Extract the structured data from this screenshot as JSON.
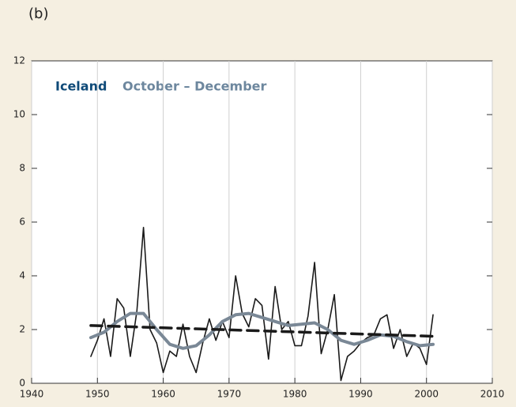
{
  "chart_data": {
    "type": "line",
    "panel_label": "(b)",
    "title": "Iceland",
    "subtitle": "October – December",
    "xlim": [
      1940,
      2010
    ],
    "xticks": [
      1940,
      1950,
      1960,
      1970,
      1980,
      1990,
      2000,
      2010
    ],
    "ylim": [
      0,
      12
    ],
    "yticks": [
      0,
      2,
      4,
      6,
      8,
      10,
      12
    ],
    "grid": true,
    "series": [
      {
        "color": "#1a1a1a",
        "style": "solid",
        "x": [
          1949,
          1950,
          1951,
          1952,
          1953,
          1954,
          1955,
          1956,
          1957,
          1958,
          1959,
          1960,
          1961,
          1962,
          1963,
          1964,
          1965,
          1966,
          1967,
          1968,
          1969,
          1970,
          1971,
          1972,
          1973,
          1974,
          1975,
          1976,
          1977,
          1978,
          1979,
          1980,
          1981,
          1982,
          1983,
          1984,
          1985,
          1986,
          1987,
          1988,
          1989,
          1990,
          1991,
          1992,
          1993,
          1994,
          1995,
          1996,
          1997,
          1998,
          1999,
          2000,
          2001
        ],
        "values": [
          1.0,
          1.6,
          2.4,
          1.0,
          3.15,
          2.8,
          1.0,
          2.7,
          5.8,
          2.0,
          1.5,
          0.4,
          1.2,
          1.0,
          2.2,
          1.0,
          0.4,
          1.5,
          2.4,
          1.6,
          2.3,
          1.7,
          4.0,
          2.6,
          2.1,
          3.15,
          2.9,
          0.9,
          3.6,
          2.0,
          2.3,
          1.4,
          1.4,
          2.5,
          4.5,
          1.1,
          2.0,
          3.3,
          0.1,
          1.0,
          1.2,
          1.5,
          1.7,
          1.8,
          2.4,
          2.55,
          1.3,
          2.0,
          1.0,
          1.5,
          1.3,
          0.7,
          2.55
        ]
      },
      {
        "color": "#7a8896",
        "style": "smooth",
        "x": [
          1949,
          1951,
          1953,
          1955,
          1957,
          1959,
          1961,
          1963,
          1965,
          1967,
          1969,
          1971,
          1973,
          1975,
          1977,
          1979,
          1981,
          1983,
          1985,
          1987,
          1989,
          1991,
          1993,
          1995,
          1997,
          1999,
          2001
        ],
        "values": [
          1.7,
          1.9,
          2.3,
          2.6,
          2.6,
          2.0,
          1.45,
          1.3,
          1.4,
          1.8,
          2.3,
          2.55,
          2.6,
          2.45,
          2.3,
          2.15,
          2.2,
          2.25,
          2.0,
          1.6,
          1.45,
          1.6,
          1.8,
          1.75,
          1.55,
          1.4,
          1.45
        ]
      },
      {
        "color": "#1a1a1a",
        "style": "dashed",
        "x": [
          1949,
          2001
        ],
        "values": [
          2.15,
          1.75
        ]
      }
    ]
  }
}
